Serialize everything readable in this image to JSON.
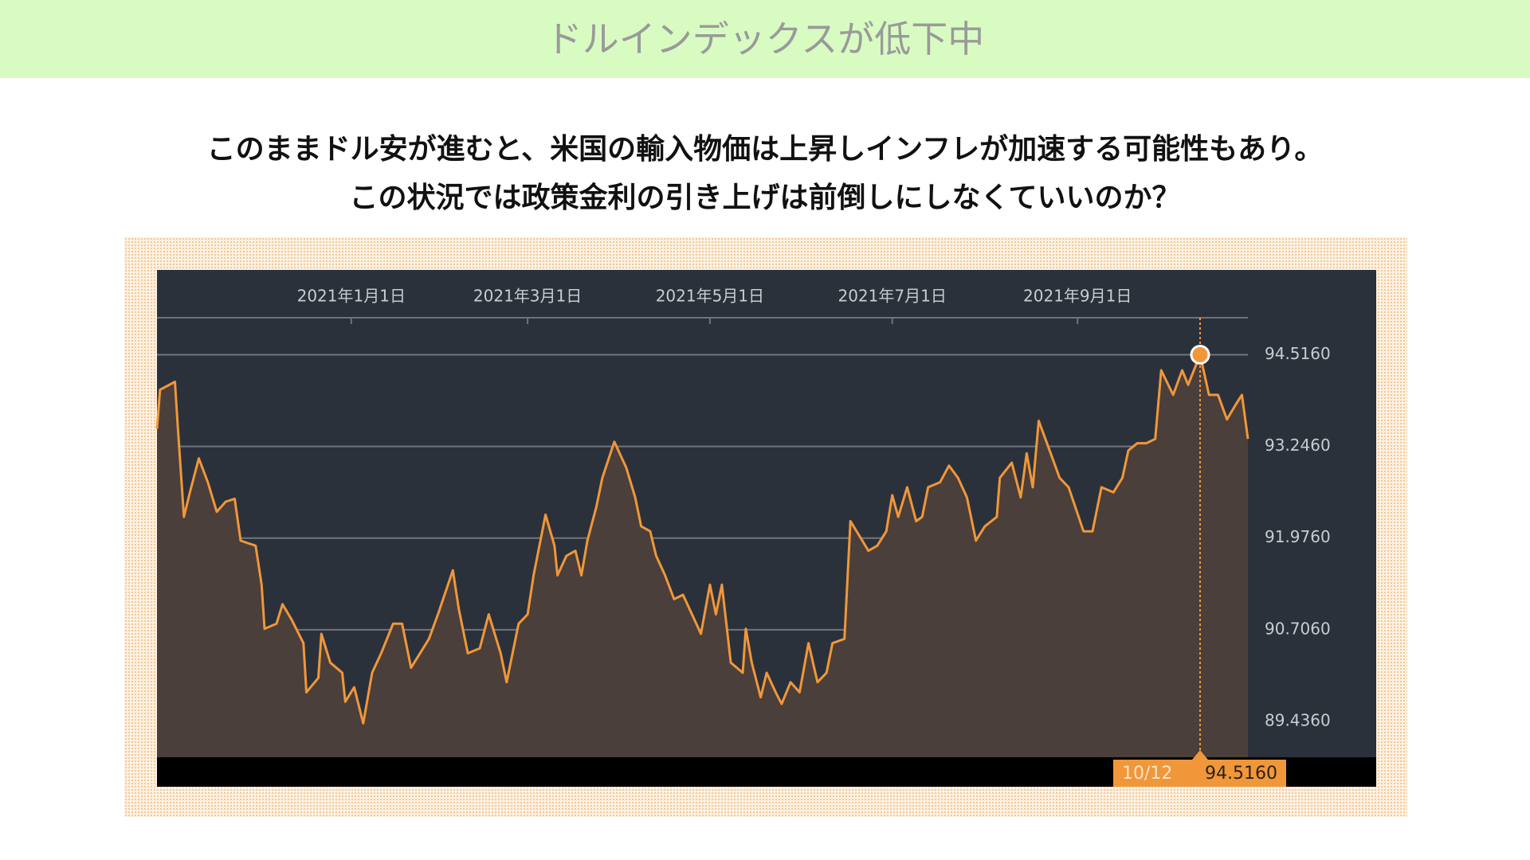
{
  "header": {
    "title": "ドルインデックスが低下中"
  },
  "caption": {
    "lines": [
      "このままドル安が進むと、米国の輸入物価は上昇しインフレが加速する可能性もあり。",
      "この状況では政策金利の引き上げは前倒しにしなくていいのか？"
    ]
  },
  "chart_data": {
    "type": "line",
    "color": "#f0973a",
    "grid": true,
    "x": [
      "2020-10-28",
      "2020-10-29",
      "2020-11-03",
      "2020-11-04",
      "2020-11-06",
      "2020-11-08",
      "2020-11-11",
      "2020-11-14",
      "2020-11-17",
      "2020-11-20",
      "2020-11-23",
      "2020-11-25",
      "2020-11-30",
      "2020-12-02",
      "2020-12-03",
      "2020-12-07",
      "2020-12-09",
      "2020-12-12",
      "2020-12-16",
      "2020-12-17",
      "2020-12-21",
      "2020-12-22",
      "2020-12-25",
      "2020-12-29",
      "2020-12-30",
      "2021-01-02",
      "2021-01-05",
      "2021-01-08",
      "2021-01-11",
      "2021-01-15",
      "2021-01-18",
      "2021-01-21",
      "2021-01-24",
      "2021-01-27",
      "2021-01-30",
      "2021-02-04",
      "2021-02-06",
      "2021-02-09",
      "2021-02-13",
      "2021-02-16",
      "2021-02-20",
      "2021-02-22",
      "2021-02-26",
      "2021-03-01",
      "2021-03-03",
      "2021-03-07",
      "2021-03-10",
      "2021-03-11",
      "2021-03-14",
      "2021-03-17",
      "2021-03-19",
      "2021-03-21",
      "2021-03-24",
      "2021-03-26",
      "2021-03-30",
      "2021-04-03",
      "2021-04-06",
      "2021-04-08",
      "2021-04-11",
      "2021-04-13",
      "2021-04-16",
      "2021-04-19",
      "2021-04-22",
      "2021-04-25",
      "2021-04-28",
      "2021-05-01",
      "2021-05-03",
      "2021-05-05",
      "2021-05-08",
      "2021-05-12",
      "2021-05-13",
      "2021-05-15",
      "2021-05-18",
      "2021-05-20",
      "2021-05-23",
      "2021-05-25",
      "2021-05-28",
      "2021-05-31",
      "2021-06-03",
      "2021-06-06",
      "2021-06-09",
      "2021-06-11",
      "2021-06-15",
      "2021-06-17",
      "2021-06-21",
      "2021-06-23",
      "2021-06-26",
      "2021-06-29",
      "2021-07-01",
      "2021-07-03",
      "2021-07-06",
      "2021-07-09",
      "2021-07-11",
      "2021-07-13",
      "2021-07-17",
      "2021-07-20",
      "2021-07-23",
      "2021-07-26",
      "2021-07-29",
      "2021-08-01",
      "2021-08-05",
      "2021-08-06",
      "2021-08-10",
      "2021-08-13",
      "2021-08-15",
      "2021-08-17",
      "2021-08-19",
      "2021-08-23",
      "2021-08-26",
      "2021-08-29",
      "2021-09-03",
      "2021-09-06",
      "2021-09-09",
      "2021-09-13",
      "2021-09-16",
      "2021-09-18",
      "2021-09-21",
      "2021-09-24",
      "2021-09-27",
      "2021-09-29",
      "2021-10-03",
      "2021-10-06",
      "2021-10-08",
      "2021-10-12",
      "2021-10-15",
      "2021-10-18",
      "2021-10-21",
      "2021-10-24",
      "2021-10-26",
      "2021-10-28"
    ],
    "values": [
      93.49,
      94.03,
      94.14,
      93.49,
      92.27,
      92.61,
      93.08,
      92.75,
      92.34,
      92.48,
      92.52,
      91.94,
      91.87,
      91.33,
      90.72,
      90.79,
      91.06,
      90.85,
      90.52,
      89.84,
      90.04,
      90.65,
      90.25,
      90.11,
      89.71,
      89.91,
      89.41,
      90.11,
      90.38,
      90.79,
      90.79,
      90.18,
      90.38,
      90.58,
      90.92,
      91.53,
      90.99,
      90.38,
      90.45,
      90.92,
      90.38,
      89.98,
      90.79,
      90.92,
      91.46,
      92.3,
      91.87,
      91.46,
      91.73,
      91.8,
      91.46,
      91.94,
      92.41,
      92.81,
      93.31,
      92.95,
      92.54,
      92.14,
      92.07,
      91.73,
      91.46,
      91.13,
      91.19,
      90.92,
      90.65,
      91.33,
      90.92,
      91.33,
      90.25,
      90.11,
      90.72,
      90.25,
      89.77,
      90.11,
      89.84,
      89.68,
      89.98,
      89.84,
      90.52,
      89.98,
      90.11,
      90.52,
      90.58,
      92.21,
      91.94,
      91.8,
      91.87,
      92.07,
      92.57,
      92.27,
      92.68,
      92.21,
      92.27,
      92.68,
      92.75,
      92.98,
      92.81,
      92.54,
      91.94,
      92.14,
      92.27,
      92.81,
      93.02,
      92.54,
      93.15,
      92.68,
      93.6,
      93.15,
      92.81,
      92.68,
      92.07,
      92.07,
      92.68,
      92.61,
      92.81,
      93.19,
      93.29,
      93.29,
      93.35,
      94.3,
      93.96,
      94.3,
      94.1,
      94.516,
      93.96,
      93.96,
      93.62,
      93.83,
      93.96,
      93.35
    ],
    "xlim": [
      "2020-10-28",
      "2021-10-28"
    ],
    "xticks": [
      {
        "value": "2021-01-01",
        "label": "2021年1月1日"
      },
      {
        "value": "2021-03-01",
        "label": "2021年3月1日"
      },
      {
        "value": "2021-05-01",
        "label": "2021年5月1日"
      },
      {
        "value": "2021-07-01",
        "label": "2021年7月1日"
      },
      {
        "value": "2021-09-01",
        "label": "2021年9月1日"
      }
    ],
    "ylim": [
      88.94,
      95.69
    ],
    "yticks": [
      {
        "value": 89.436,
        "label": "89.4360"
      },
      {
        "value": 90.706,
        "label": "90.7060"
      },
      {
        "value": 91.976,
        "label": "91.9760"
      },
      {
        "value": 93.246,
        "label": "93.2460"
      },
      {
        "value": 94.516,
        "label": "94.5160"
      }
    ],
    "highlight": {
      "x": "2021-10-12",
      "label": "10/12",
      "value": 94.516,
      "value_label": "94.5160"
    }
  }
}
